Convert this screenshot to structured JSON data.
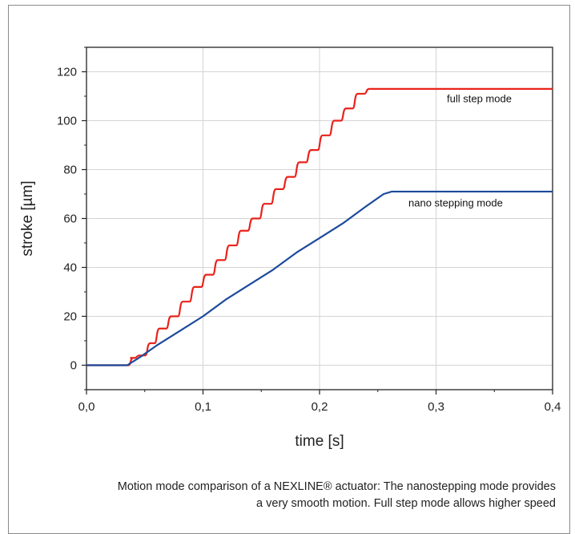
{
  "chart_data": {
    "type": "line",
    "xlabel": "time [s]",
    "ylabel": "stroke [µm]",
    "xlim": [
      0.0,
      0.4
    ],
    "ylim": [
      -10,
      130
    ],
    "xticks": [
      0.0,
      0.1,
      0.2,
      0.3,
      0.4
    ],
    "xtick_labels": [
      "0,0",
      "0,1",
      "0,2",
      "0,3",
      "0,4"
    ],
    "yticks": [
      0,
      20,
      40,
      60,
      80,
      100,
      120
    ],
    "ytick_labels": [
      "0",
      "20",
      "40",
      "60",
      "80",
      "100",
      "120"
    ],
    "grid": true,
    "legend": "inline labels",
    "series": [
      {
        "name": "full step mode",
        "color": "#e8231b",
        "x": [
          0.0,
          0.035,
          0.038,
          0.048,
          0.055,
          0.065,
          0.075,
          0.085,
          0.095,
          0.105,
          0.115,
          0.125,
          0.135,
          0.145,
          0.155,
          0.165,
          0.175,
          0.185,
          0.195,
          0.205,
          0.215,
          0.225,
          0.235,
          0.245,
          0.255,
          0.265,
          0.275,
          0.285,
          0.295,
          0.305,
          0.315,
          0.322,
          0.33,
          0.4
        ],
        "y": [
          0,
          0,
          3,
          4,
          9,
          15,
          20,
          26,
          32,
          37,
          43,
          49,
          55,
          60,
          66,
          72,
          77,
          83,
          88,
          94,
          100,
          105,
          111,
          113,
          113,
          113,
          113,
          113,
          113,
          113,
          113,
          113,
          113,
          113
        ]
      },
      {
        "name": "nano stepping mode",
        "color": "#1c4a9c",
        "x": [
          0.0,
          0.035,
          0.045,
          0.06,
          0.08,
          0.1,
          0.12,
          0.14,
          0.16,
          0.18,
          0.2,
          0.22,
          0.24,
          0.255,
          0.262,
          0.4
        ],
        "y": [
          0,
          0,
          3,
          8,
          14,
          20,
          27,
          33,
          39,
          46,
          52,
          58,
          65,
          70,
          71,
          71
        ]
      }
    ]
  },
  "caption": {
    "line1": "Motion mode comparison of a NEXLINE® actuator: The nanostepping mode provides",
    "line2": "a very smooth motion. Full step mode allows higher speed"
  }
}
